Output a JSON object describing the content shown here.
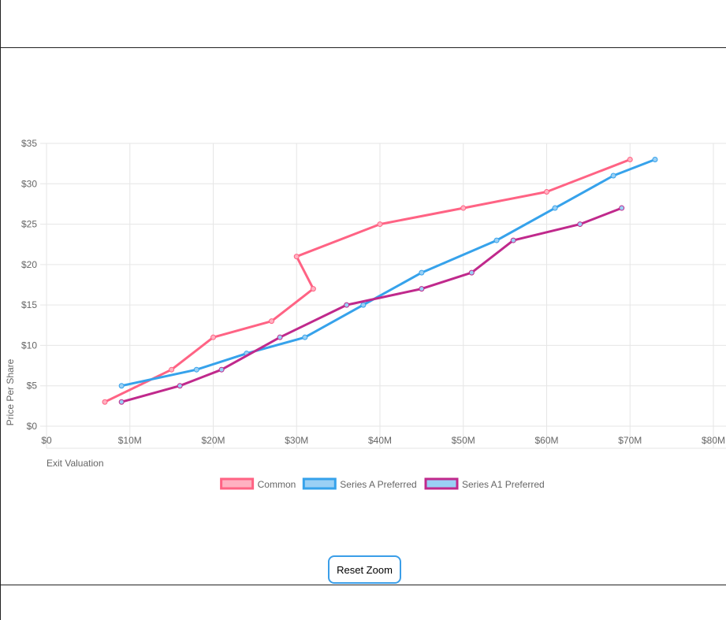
{
  "chart_data": {
    "type": "line",
    "title": "",
    "xlabel": "Exit Valuation",
    "ylabel": "Price Per Share",
    "xlim": [
      0,
      80
    ],
    "ylim": [
      0,
      35
    ],
    "x_ticks": [
      "$0",
      "$10M",
      "$20M",
      "$30M",
      "$40M",
      "$50M",
      "$60M",
      "$70M",
      "$80M"
    ],
    "y_ticks": [
      "$0",
      "$5",
      "$10",
      "$15",
      "$20",
      "$25",
      "$30",
      "$35"
    ],
    "x_unit": "$M",
    "y_unit": "$",
    "grid": true,
    "legend_position": "bottom",
    "series": [
      {
        "name": "Common",
        "color": "#ff6384",
        "fill": "#ffb1c1",
        "points": [
          [
            7,
            3
          ],
          [
            15,
            7
          ],
          [
            20,
            11
          ],
          [
            27,
            13
          ],
          [
            32,
            17
          ],
          [
            30,
            21
          ],
          [
            40,
            25
          ],
          [
            50,
            27
          ],
          [
            60,
            29
          ],
          [
            70,
            33
          ]
        ]
      },
      {
        "name": "Series A Preferred",
        "color": "#36a2eb",
        "fill": "#9ad0f5",
        "points": [
          [
            9,
            5
          ],
          [
            18,
            7
          ],
          [
            24,
            9
          ],
          [
            31,
            11
          ],
          [
            38,
            15
          ],
          [
            45,
            19
          ],
          [
            54,
            23
          ],
          [
            61,
            27
          ],
          [
            68,
            31
          ],
          [
            73,
            33
          ]
        ]
      },
      {
        "name": "Series A1 Preferred",
        "color": "#c0298c",
        "fill": "#9ad0f5",
        "points": [
          [
            9,
            3
          ],
          [
            16,
            5
          ],
          [
            21,
            7
          ],
          [
            28,
            11
          ],
          [
            36,
            15
          ],
          [
            45,
            17
          ],
          [
            51,
            19
          ],
          [
            56,
            23
          ],
          [
            64,
            25
          ],
          [
            69,
            27
          ]
        ]
      }
    ]
  },
  "controls": {
    "reset_zoom_label": "Reset Zoom"
  }
}
